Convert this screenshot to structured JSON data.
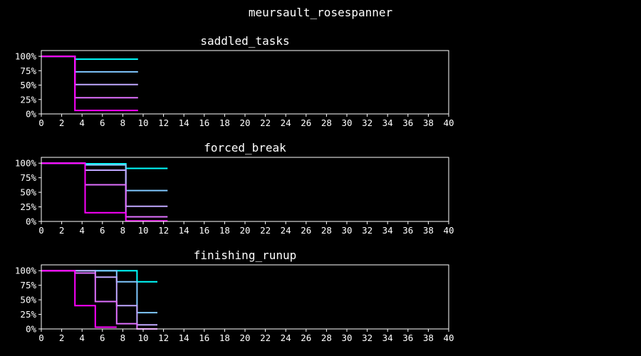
{
  "colors": {
    "background": "#000000",
    "foreground": "#ffffff"
  },
  "chart_data": {
    "type": "line",
    "suptitle": "meursault_rosespanner",
    "xlim": [
      0,
      40
    ],
    "ylim": [
      0,
      1.1
    ],
    "x_ticks": [
      0,
      2,
      4,
      6,
      8,
      10,
      12,
      14,
      16,
      18,
      20,
      22,
      24,
      26,
      28,
      30,
      32,
      34,
      36,
      38,
      40
    ],
    "y_ticks": [
      0,
      0.25,
      0.5,
      0.75,
      1.0
    ],
    "y_tick_labels": [
      "0%",
      "25%",
      "50%",
      "75%",
      "100%"
    ],
    "grid": false,
    "legend": "none",
    "panels": [
      {
        "title": "saddled_tasks",
        "series": [
          {
            "color": "#00ffff",
            "points": [
              [
                0,
                1.0
              ],
              [
                3.3,
                1.0
              ],
              [
                3.3,
                0.95
              ],
              [
                9.5,
                0.95
              ]
            ]
          },
          {
            "color": "#80c8ff",
            "points": [
              [
                0,
                1.0
              ],
              [
                3.3,
                1.0
              ],
              [
                3.3,
                0.73
              ],
              [
                9.5,
                0.73
              ]
            ]
          },
          {
            "color": "#c0a8ff",
            "points": [
              [
                0,
                1.0
              ],
              [
                3.3,
                1.0
              ],
              [
                3.3,
                0.51
              ],
              [
                9.5,
                0.51
              ]
            ]
          },
          {
            "color": "#e070ff",
            "points": [
              [
                0,
                1.0
              ],
              [
                3.3,
                1.0
              ],
              [
                3.3,
                0.28
              ],
              [
                9.5,
                0.28
              ]
            ]
          },
          {
            "color": "#ff00ff",
            "points": [
              [
                0,
                1.0
              ],
              [
                3.3,
                1.0
              ],
              [
                3.3,
                0.06
              ],
              [
                9.5,
                0.06
              ]
            ]
          }
        ]
      },
      {
        "title": "forced_break",
        "series": [
          {
            "color": "#00ffff",
            "points": [
              [
                0,
                1.0
              ],
              [
                4.3,
                1.0
              ],
              [
                4.3,
                0.99
              ],
              [
                8.3,
                0.99
              ],
              [
                8.3,
                0.91
              ],
              [
                12.4,
                0.91
              ]
            ]
          },
          {
            "color": "#80c8ff",
            "points": [
              [
                0,
                1.0
              ],
              [
                4.3,
                1.0
              ],
              [
                4.3,
                0.97
              ],
              [
                8.3,
                0.97
              ],
              [
                8.3,
                0.53
              ],
              [
                12.4,
                0.53
              ]
            ]
          },
          {
            "color": "#c0a8ff",
            "points": [
              [
                0,
                1.0
              ],
              [
                4.3,
                1.0
              ],
              [
                4.3,
                0.88
              ],
              [
                8.3,
                0.88
              ],
              [
                8.3,
                0.26
              ],
              [
                12.4,
                0.26
              ]
            ]
          },
          {
            "color": "#e070ff",
            "points": [
              [
                0,
                1.0
              ],
              [
                4.3,
                1.0
              ],
              [
                4.3,
                0.63
              ],
              [
                8.3,
                0.63
              ],
              [
                8.3,
                0.08
              ],
              [
                12.4,
                0.08
              ]
            ]
          },
          {
            "color": "#ff00ff",
            "points": [
              [
                0,
                1.0
              ],
              [
                4.3,
                1.0
              ],
              [
                4.3,
                0.15
              ],
              [
                8.3,
                0.15
              ],
              [
                8.3,
                0.01
              ],
              [
                12.4,
                0.01
              ]
            ]
          }
        ]
      },
      {
        "title": "finishing_runup",
        "series": [
          {
            "color": "#00ffff",
            "points": [
              [
                0,
                1.0
              ],
              [
                9.4,
                1.0
              ],
              [
                9.4,
                0.81
              ],
              [
                11.4,
                0.81
              ]
            ]
          },
          {
            "color": "#80c8ff",
            "points": [
              [
                0,
                1.0
              ],
              [
                7.4,
                1.0
              ],
              [
                7.4,
                0.81
              ],
              [
                9.4,
                0.81
              ],
              [
                9.4,
                0.28
              ],
              [
                11.4,
                0.28
              ]
            ]
          },
          {
            "color": "#c0a8ff",
            "points": [
              [
                0,
                1.0
              ],
              [
                5.3,
                1.0
              ],
              [
                5.3,
                0.89
              ],
              [
                7.4,
                0.89
              ],
              [
                7.4,
                0.4
              ],
              [
                9.4,
                0.4
              ],
              [
                9.4,
                0.07
              ],
              [
                11.4,
                0.07
              ]
            ]
          },
          {
            "color": "#e070ff",
            "points": [
              [
                0,
                1.0
              ],
              [
                3.3,
                1.0
              ],
              [
                3.3,
                0.96
              ],
              [
                5.3,
                0.96
              ],
              [
                5.3,
                0.47
              ],
              [
                7.4,
                0.47
              ],
              [
                7.4,
                0.09
              ],
              [
                9.4,
                0.09
              ],
              [
                9.4,
                0.0
              ],
              [
                11.4,
                0.0
              ]
            ]
          },
          {
            "color": "#ff00ff",
            "points": [
              [
                0,
                1.0
              ],
              [
                3.3,
                1.0
              ],
              [
                3.3,
                0.4
              ],
              [
                5.3,
                0.4
              ],
              [
                5.3,
                0.03
              ],
              [
                7.4,
                0.03
              ]
            ]
          }
        ]
      }
    ]
  }
}
